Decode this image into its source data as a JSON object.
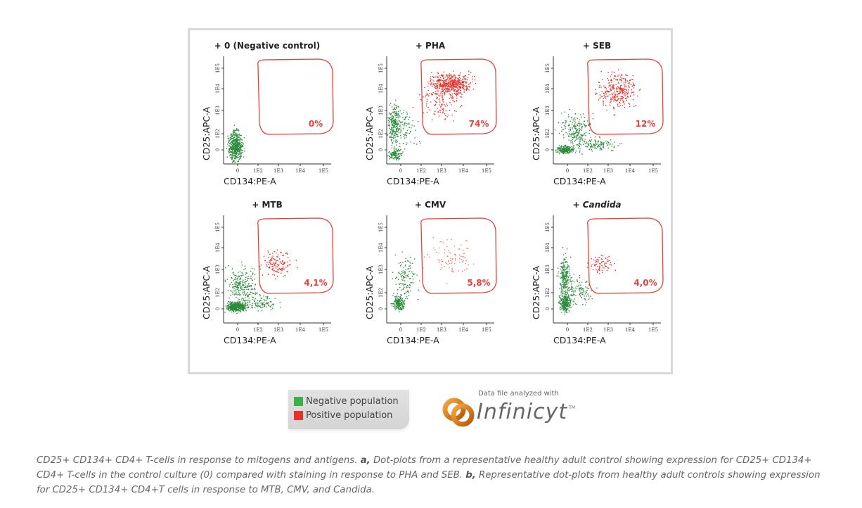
{
  "colors": {
    "negative": "#2e8b3e",
    "positive": "#e8302a",
    "gate": "#e8413a"
  },
  "chart_data": [
    {
      "type": "scatter",
      "title": "+ 0 (Negative control)",
      "xlabel": "CD134:PE-A",
      "ylabel": "CD25:APC-A",
      "xticks": [
        "0",
        "1E2",
        "1E3",
        "1E4",
        "1E5"
      ],
      "yticks": [
        "0",
        "1E2",
        "1E3",
        "1E4",
        "1E5"
      ],
      "xscale": "log",
      "yscale": "log",
      "gate_label": "0%",
      "positive_fraction": 0
    },
    {
      "type": "scatter",
      "title": "+ PHA",
      "xlabel": "CD134:PE-A",
      "ylabel": "CD25:APC-A",
      "xticks": [
        "0",
        "1E2",
        "1E3",
        "1E4",
        "1E5"
      ],
      "yticks": [
        "0",
        "1E2",
        "1E3",
        "1E4",
        "1E5"
      ],
      "xscale": "log",
      "yscale": "log",
      "gate_label": "74%",
      "positive_fraction": 0.74
    },
    {
      "type": "scatter",
      "title": "+ SEB",
      "xlabel": "CD134:PE-A",
      "ylabel": "CD25:APC-A",
      "xticks": [
        "0",
        "1E2",
        "1E3",
        "1E4",
        "1E5"
      ],
      "yticks": [
        "0",
        "1E2",
        "1E3",
        "1E4",
        "1E5"
      ],
      "xscale": "log",
      "yscale": "log",
      "gate_label": "12%",
      "positive_fraction": 0.12
    },
    {
      "type": "scatter",
      "title": "+ MTB",
      "xlabel": "CD134:PE-A",
      "ylabel": "CD25:APC-A",
      "xticks": [
        "0",
        "1E2",
        "1E3",
        "1E4",
        "1E5"
      ],
      "yticks": [
        "0",
        "1E2",
        "1E3",
        "1E4",
        "1E5"
      ],
      "xscale": "log",
      "yscale": "log",
      "gate_label": "4,1%",
      "positive_fraction": 0.041
    },
    {
      "type": "scatter",
      "title": "+ CMV",
      "xlabel": "CD134:PE-A",
      "ylabel": "CD25:APC-A",
      "xticks": [
        "0",
        "1E2",
        "1E3",
        "1E4",
        "1E5"
      ],
      "yticks": [
        "0",
        "1E2",
        "1E3",
        "1E4",
        "1E5"
      ],
      "xscale": "log",
      "yscale": "log",
      "gate_label": "5,8%",
      "positive_fraction": 0.058
    },
    {
      "type": "scatter",
      "title": "+ Candida",
      "xlabel": "CD134:PE-A",
      "ylabel": "CD25:APC-A",
      "xticks": [
        "0",
        "1E2",
        "1E3",
        "1E4",
        "1E5"
      ],
      "yticks": [
        "0",
        "1E2",
        "1E3",
        "1E4",
        "1E5"
      ],
      "xscale": "log",
      "yscale": "log",
      "gate_label": "4,0%",
      "positive_fraction": 0.04
    }
  ],
  "legend": {
    "negative": "Negative population",
    "positive": "Positive population",
    "placement": "bottom"
  },
  "logo": {
    "caption": "Data file analyzed with",
    "word": "Infinicyt",
    "tm": "TM"
  },
  "caption": {
    "p1": "CD25+ CD134+ CD4+ T-cells in response to mitogens and antigens. ",
    "a": "a,",
    "p2": " Dot-plots from a representative healthy adult control showing expression for CD25+ CD134+ CD4+ T-cells in the control culture (0) compared with staining in response to PHA and SEB. ",
    "b": "b,",
    "p3": " Representative dot-plots from healthy adult controls showing expression for CD25+ CD134+ CD4+T cells in response to MTB, CMV, and Candida."
  }
}
